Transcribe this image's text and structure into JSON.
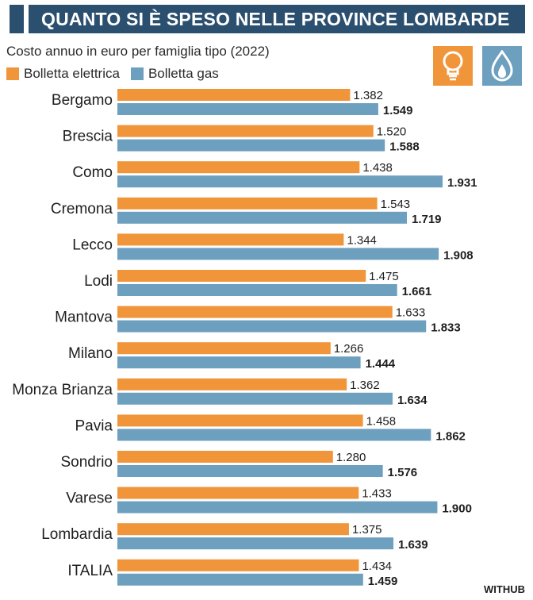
{
  "header": {
    "title": "QUANTO SI È SPESO NELLE PROVINCE LOMBARDE"
  },
  "icons": {
    "electric": "light-bulb-icon",
    "gas": "gas-flame-icon"
  },
  "source": "WITHUB",
  "colors": {
    "title_bg": "#2b4f6e",
    "electric": "#f0953a",
    "gas": "#6d9fbf"
  },
  "chart_data": {
    "type": "bar",
    "orientation": "horizontal",
    "subtitle": "Costo annuo in euro per famiglia tipo (2022)",
    "categories": [
      "Bergamo",
      "Brescia",
      "Como",
      "Cremona",
      "Lecco",
      "Lodi",
      "Mantova",
      "Milano",
      "Monza Brianza",
      "Pavia",
      "Sondrio",
      "Varese",
      "Lombardia",
      "ITALIA"
    ],
    "series": [
      {
        "name": "Bolletta elettrica",
        "values": [
          1382,
          1520,
          1438,
          1543,
          1344,
          1475,
          1633,
          1266,
          1362,
          1458,
          1280,
          1433,
          1375,
          1434
        ],
        "labels": [
          "1.382",
          "1.520",
          "1.438",
          "1.543",
          "1.344",
          "1.475",
          "1.633",
          "1.266",
          "1.362",
          "1.458",
          "1.280",
          "1.433",
          "1.375",
          "1.434"
        ]
      },
      {
        "name": "Bolletta gas",
        "values": [
          1549,
          1588,
          1931,
          1719,
          1908,
          1661,
          1833,
          1444,
          1634,
          1862,
          1576,
          1900,
          1639,
          1459
        ],
        "labels": [
          "1.549",
          "1.588",
          "1.931",
          "1.719",
          "1.908",
          "1.661",
          "1.833",
          "1.444",
          "1.634",
          "1.862",
          "1.576",
          "1.900",
          "1.639",
          "1.459"
        ]
      }
    ],
    "xlim": [
      0,
      1931
    ],
    "legend_position": "top-left",
    "grid": false
  }
}
